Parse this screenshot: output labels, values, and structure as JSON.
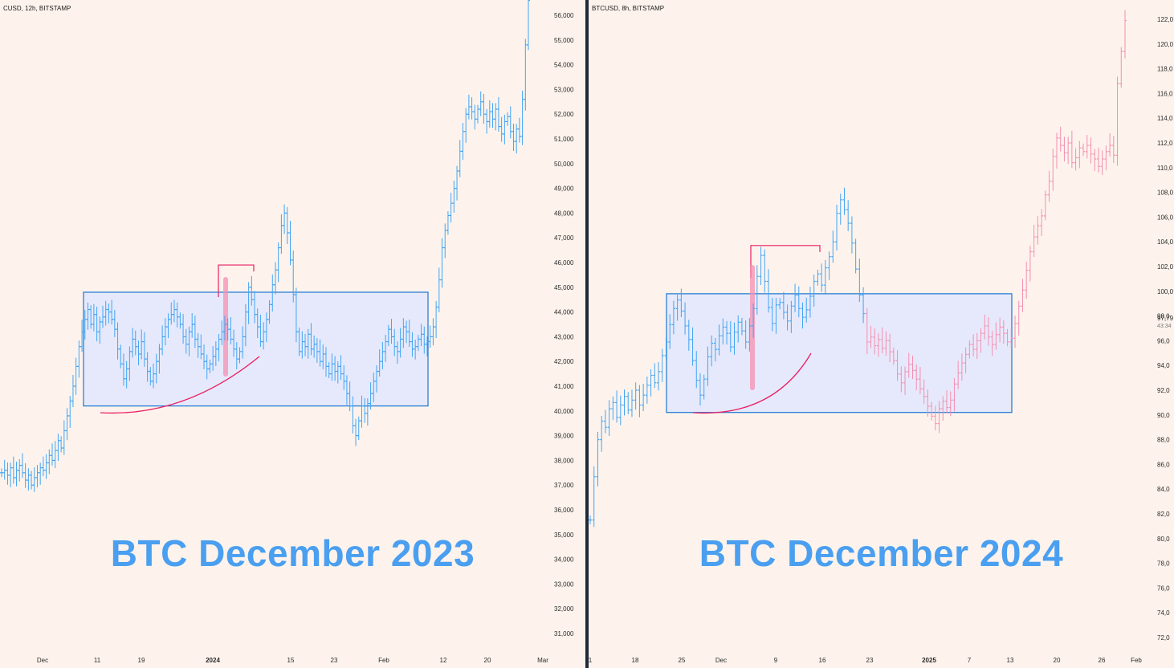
{
  "colors": {
    "background": "#fdf3ec",
    "candle_blue": "#42a5f5",
    "candle_pink": "#f48fb1",
    "range_box_fill": "#e6e9fb",
    "range_box_border": "#1976d2",
    "annotation_red": "#e91e63",
    "title": "#4a9ff0"
  },
  "chart_data": [
    {
      "type": "bar",
      "header": "CUSD, 12h, BITSTAMP",
      "title": "BTC December 2023",
      "x_tick_labels": [
        {
          "label": "Dec",
          "bold": false
        },
        {
          "label": "11",
          "bold": false
        },
        {
          "label": "19",
          "bold": false
        },
        {
          "label": "2024",
          "bold": true
        },
        {
          "label": "15",
          "bold": false
        },
        {
          "label": "23",
          "bold": false
        },
        {
          "label": "Feb",
          "bold": false
        },
        {
          "label": "12",
          "bold": false
        },
        {
          "label": "20",
          "bold": false
        },
        {
          "label": "Mar",
          "bold": false
        }
      ],
      "y_tick_labels": [
        "56,000",
        "55,000",
        "54,000",
        "53,000",
        "52,000",
        "51,000",
        "50,000",
        "49,000",
        "48,000",
        "47,000",
        "46,000",
        "45,000",
        "44,000",
        "43,000",
        "42,000",
        "41,000",
        "40,000",
        "39,000",
        "38,000",
        "37,000",
        "36,000",
        "35,000",
        "34,000",
        "33,000",
        "32,000",
        "31,000"
      ],
      "ylim": [
        30400,
        56700
      ],
      "range_box": {
        "low": 40200,
        "high": 44800
      },
      "breakout_line": 45900,
      "series": [
        {
          "color": "candle_blue",
          "values": [
            37500,
            37600,
            37400,
            37700,
            37300,
            37600,
            37800,
            37500,
            37200,
            37400,
            37000,
            37300,
            37500,
            37700,
            37600,
            37900,
            38200,
            38000,
            38400,
            38800,
            38500,
            39200,
            39800,
            40400,
            41000,
            41800,
            42600,
            43200,
            43700,
            44100,
            43500,
            43900,
            43200,
            43600,
            43800,
            44100,
            44000,
            43700,
            43300,
            42500,
            41900,
            41300,
            41700,
            42400,
            42900,
            42600,
            42300,
            42800,
            42100,
            41600,
            41200,
            41500,
            42000,
            42500,
            43000,
            43400,
            43700,
            43900,
            44100,
            43800,
            43500,
            43000,
            42700,
            43200,
            43500,
            42900,
            42600,
            42300,
            42000,
            41700,
            41900,
            42200,
            42500,
            42900,
            43200,
            43500,
            43300,
            42900,
            42500,
            42100,
            42400,
            43000,
            44000,
            45000,
            44500,
            43900,
            43400,
            42800,
            43200,
            43700,
            44300,
            45100,
            45700,
            46600,
            47500,
            48000,
            47200,
            46100,
            44700,
            43200,
            42400,
            42800,
            42600,
            43100,
            42500,
            42700,
            42400,
            42000,
            42300,
            41800,
            41500,
            41900,
            41600,
            41800,
            41500,
            41200,
            40700,
            40200,
            39400,
            39000,
            39600,
            40200,
            39900,
            40300,
            40700,
            41200,
            41600,
            42000,
            42400,
            42800,
            43300,
            43000,
            42600,
            42400,
            42900,
            43400,
            43200,
            42800,
            42500,
            42600,
            42900,
            43100,
            42700,
            42800,
            43000,
            43400,
            44200,
            45300,
            46600,
            47300,
            47900,
            48400,
            49000,
            49700,
            50500,
            51300,
            52000,
            52300,
            52100,
            51800,
            52200,
            52500,
            52000,
            51700,
            52100,
            51800,
            52200,
            51500,
            51200,
            51700,
            51900,
            51300,
            50900,
            51400,
            51100,
            52600,
            54800,
            56600
          ]
        }
      ]
    },
    {
      "type": "bar",
      "header": "BTCUSD, 8h, BITSTAMP",
      "title": "BTC December 2024",
      "x_tick_labels": [
        {
          "label": "1",
          "bold": false
        },
        {
          "label": "18",
          "bold": false
        },
        {
          "label": "25",
          "bold": false
        },
        {
          "label": "Dec",
          "bold": false
        },
        {
          "label": "9",
          "bold": false
        },
        {
          "label": "16",
          "bold": false
        },
        {
          "label": "23",
          "bold": false
        },
        {
          "label": "2025",
          "bold": true
        },
        {
          "label": "7",
          "bold": false
        },
        {
          "label": "13",
          "bold": false
        },
        {
          "label": "20",
          "bold": false
        },
        {
          "label": "26",
          "bold": false
        },
        {
          "label": "Feb",
          "bold": false
        }
      ],
      "y_tick_labels": [
        "122,0",
        "120,0",
        "118,0",
        "116,0",
        "114,0",
        "112,0",
        "110,0",
        "108,0",
        "106,0",
        "104,0",
        "102,0",
        "100,0",
        "98,0",
        "96,0",
        "94,0",
        "92,0",
        "90,0",
        "88,0",
        "86,0",
        "84,0",
        "82,0",
        "80,0",
        "78,0",
        "76,0",
        "74,0",
        "72,0"
      ],
      "price_label": {
        "value": "97,79",
        "sub": "43:34"
      },
      "ylim": [
        71000,
        122900
      ],
      "range_box": {
        "low": 90200,
        "high": 99800
      },
      "breakout_line": 103700,
      "series": [
        {
          "color": "candle_blue",
          "values": [
            81500,
            85000,
            88000,
            89500,
            89000,
            90500,
            91000,
            89800,
            90800,
            91500,
            90400,
            91200,
            92000,
            90800,
            91600,
            92400,
            93200,
            92600,
            93500,
            94800,
            95900,
            97300,
            98600,
            99300,
            98400,
            97200,
            96100,
            94400,
            92800,
            91600,
            92900,
            94700,
            95800,
            95300,
            96400,
            97100,
            96600,
            95500,
            96700,
            97500,
            96800,
            95900,
            97200,
            98600,
            101200,
            102900,
            100800,
            98700,
            97400,
            98900,
            99100,
            98300,
            97600,
            98800,
            99700,
            98600,
            97900,
            98500,
            99600,
            100800,
            101400,
            100500,
            101900,
            102800,
            104000,
            106300,
            107400,
            106600,
            105500,
            103900,
            101800,
            99700,
            98200
          ]
        },
        {
          "color": "candle_pink",
          "values": [
            95900,
            96300,
            95600,
            96100,
            95400,
            96000,
            95100,
            94400,
            93300,
            92600,
            93500,
            94100,
            93600,
            92900,
            92100,
            91500,
            90700,
            89900,
            89300,
            90500,
            91100,
            90600,
            91200,
            92500,
            93400,
            94200,
            94900,
            95700,
            95300,
            96000,
            96600,
            97200,
            96300,
            95700,
            96500,
            97100,
            96600,
            95900,
            96200,
            97400,
            98800,
            100100,
            101700,
            103200,
            104400,
            105300,
            106100,
            107800,
            108900,
            110900,
            112400,
            111800,
            111200,
            112000,
            110400,
            110800,
            111600,
            111300,
            111800,
            111100,
            110700,
            110100,
            110700,
            111300,
            111800,
            111000,
            116800,
            119400,
            121900
          ]
        }
      ]
    }
  ]
}
